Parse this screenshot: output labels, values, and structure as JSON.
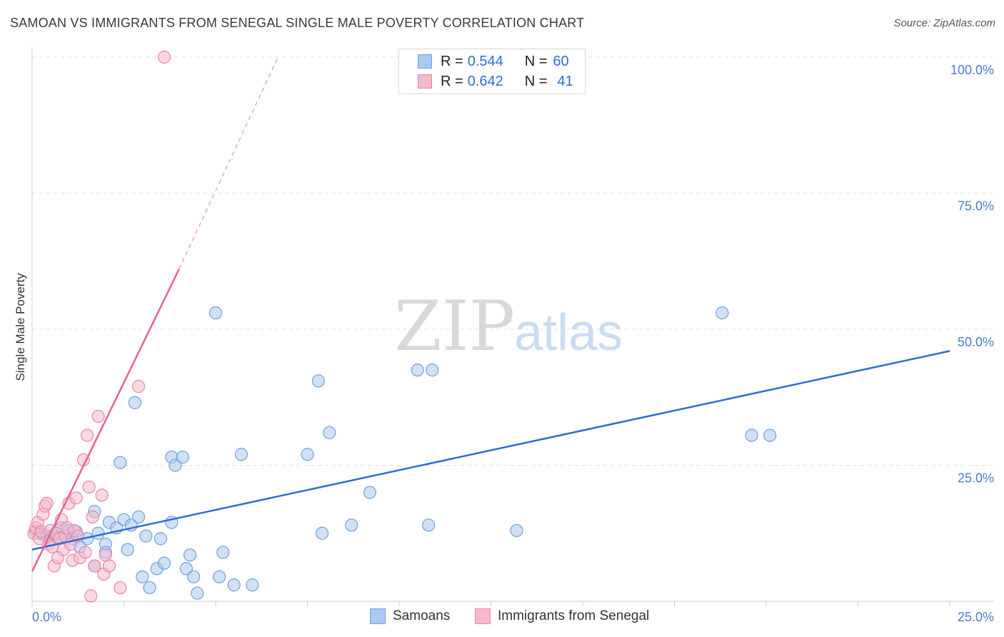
{
  "header": {
    "title": "SAMOAN VS IMMIGRANTS FROM SENEGAL SINGLE MALE POVERTY CORRELATION CHART",
    "source": "Source: ZipAtlas.com"
  },
  "legend": {
    "rows": [
      {
        "r_label": "R = ",
        "r_value": "0.544",
        "n_label": "N = ",
        "n_value": "60"
      },
      {
        "r_label": "R = ",
        "r_value": "0.642",
        "n_label": "N = ",
        "n_value": "41"
      }
    ]
  },
  "watermark": {
    "zip": "ZIP",
    "atlas": "atlas"
  },
  "colors": {
    "samoans_fill": "#aac9f0",
    "samoans_stroke": "#6fa0e0",
    "samoans_line": "#2a6fd6",
    "senegal_fill": "#f6b9cb",
    "senegal_stroke": "#ea85a5",
    "senegal_line": "#e8608e",
    "grid": "#dedede",
    "tick_text": "#4a7fd0"
  },
  "chart_data": {
    "type": "scatter",
    "title": "SAMOAN VS IMMIGRANTS FROM SENEGAL SINGLE MALE POVERTY CORRELATION CHART",
    "xlabel": "",
    "ylabel": "Single Male Poverty",
    "xlim": [
      0,
      25
    ],
    "ylim": [
      0,
      100
    ],
    "x_tick_labels": [
      "0.0%",
      "25.0%"
    ],
    "y_tick_labels": [
      "25.0%",
      "50.0%",
      "75.0%",
      "100.0%"
    ],
    "y_ticks": [
      25,
      50,
      75,
      100
    ],
    "grid": true,
    "legend_position": "top-center",
    "series": [
      {
        "name": "Samoans",
        "points": [
          [
            0.1,
            12.8
          ],
          [
            0.2,
            12.5
          ],
          [
            0.3,
            12.3
          ],
          [
            0.4,
            12.0
          ],
          [
            0.5,
            11.5
          ],
          [
            0.6,
            12.2
          ],
          [
            0.7,
            11.8
          ],
          [
            0.8,
            13.5
          ],
          [
            0.9,
            12.0
          ],
          [
            1.0,
            13.0
          ],
          [
            1.1,
            11.5
          ],
          [
            1.2,
            12.8
          ],
          [
            1.3,
            10.0
          ],
          [
            1.5,
            11.5
          ],
          [
            1.7,
            6.5
          ],
          [
            1.7,
            16.5
          ],
          [
            1.8,
            12.5
          ],
          [
            2.0,
            10.5
          ],
          [
            2.0,
            9.0
          ],
          [
            2.1,
            14.5
          ],
          [
            2.3,
            13.5
          ],
          [
            2.4,
            25.5
          ],
          [
            2.5,
            15.0
          ],
          [
            2.6,
            9.5
          ],
          [
            2.7,
            14.0
          ],
          [
            2.8,
            36.5
          ],
          [
            2.9,
            15.5
          ],
          [
            3.0,
            4.5
          ],
          [
            3.1,
            12.0
          ],
          [
            3.2,
            2.5
          ],
          [
            3.4,
            6.0
          ],
          [
            3.5,
            11.5
          ],
          [
            3.6,
            7.0
          ],
          [
            3.8,
            26.5
          ],
          [
            3.8,
            14.5
          ],
          [
            3.9,
            25.0
          ],
          [
            4.1,
            26.5
          ],
          [
            4.2,
            6.0
          ],
          [
            4.3,
            8.5
          ],
          [
            4.4,
            4.5
          ],
          [
            4.5,
            1.5
          ],
          [
            5.0,
            53.0
          ],
          [
            5.1,
            4.5
          ],
          [
            5.2,
            9.0
          ],
          [
            5.5,
            3.0
          ],
          [
            5.7,
            27.0
          ],
          [
            6.0,
            3.0
          ],
          [
            7.5,
            27.0
          ],
          [
            7.8,
            40.5
          ],
          [
            7.9,
            12.5
          ],
          [
            8.1,
            31.0
          ],
          [
            8.7,
            14.0
          ],
          [
            9.2,
            20.0
          ],
          [
            10.5,
            42.5
          ],
          [
            10.8,
            14.0
          ],
          [
            10.9,
            42.5
          ],
          [
            13.2,
            13.0
          ],
          [
            18.8,
            53.0
          ],
          [
            19.6,
            30.5
          ],
          [
            20.1,
            30.5
          ]
        ],
        "trend": {
          "x": [
            0,
            25
          ],
          "y": [
            9.5,
            46.0
          ]
        }
      },
      {
        "name": "Immigrants from Senegal",
        "points": [
          [
            0.05,
            12.5
          ],
          [
            0.1,
            13.5
          ],
          [
            0.15,
            14.5
          ],
          [
            0.2,
            11.5
          ],
          [
            0.25,
            12.8
          ],
          [
            0.3,
            16.0
          ],
          [
            0.35,
            17.5
          ],
          [
            0.4,
            18.0
          ],
          [
            0.45,
            10.5
          ],
          [
            0.5,
            13.0
          ],
          [
            0.55,
            10.0
          ],
          [
            0.6,
            6.5
          ],
          [
            0.65,
            12.5
          ],
          [
            0.7,
            8.0
          ],
          [
            0.75,
            11.5
          ],
          [
            0.8,
            15.0
          ],
          [
            0.85,
            9.5
          ],
          [
            0.9,
            12.0
          ],
          [
            0.95,
            13.5
          ],
          [
            1.0,
            18.0
          ],
          [
            1.05,
            10.5
          ],
          [
            1.1,
            7.5
          ],
          [
            1.15,
            13.0
          ],
          [
            1.2,
            19.0
          ],
          [
            1.25,
            12.0
          ],
          [
            1.3,
            8.0
          ],
          [
            1.4,
            26.0
          ],
          [
            1.45,
            9.0
          ],
          [
            1.5,
            30.5
          ],
          [
            1.55,
            21.0
          ],
          [
            1.6,
            1.0
          ],
          [
            1.65,
            15.5
          ],
          [
            1.7,
            6.5
          ],
          [
            1.8,
            34.0
          ],
          [
            1.9,
            19.5
          ],
          [
            1.95,
            5.0
          ],
          [
            2.0,
            8.5
          ],
          [
            2.1,
            6.5
          ],
          [
            2.4,
            2.5
          ],
          [
            2.9,
            39.5
          ],
          [
            3.6,
            100.0
          ]
        ],
        "trend": {
          "x": [
            0,
            4.0
          ],
          "y": [
            5.5,
            61.0
          ]
        },
        "trend_extrapolated": {
          "x": [
            4.0,
            6.7
          ],
          "y": [
            61.0,
            100.0
          ]
        }
      }
    ]
  },
  "bottom_legend": {
    "items": [
      {
        "label": "Samoans"
      },
      {
        "label": "Immigrants from Senegal"
      }
    ]
  }
}
